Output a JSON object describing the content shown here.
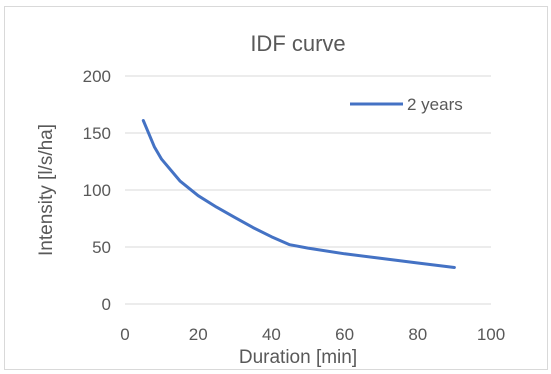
{
  "chart_data": {
    "type": "line",
    "title": "IDF curve",
    "xlabel": "Duration [min]",
    "ylabel": "Intensity [l/s/ha]",
    "xlim": [
      0,
      100
    ],
    "ylim": [
      0,
      200
    ],
    "x_ticks": [
      "0",
      "20",
      "40",
      "60",
      "80",
      "100"
    ],
    "y_ticks": [
      "0",
      "50",
      "100",
      "150",
      "200"
    ],
    "grid": "horizontal",
    "legend": "top-right",
    "series": [
      {
        "name": "2 years",
        "color": "#4472c4",
        "points": [
          [
            5,
            161
          ],
          [
            8,
            138
          ],
          [
            10,
            127
          ],
          [
            15,
            108
          ],
          [
            20,
            95
          ],
          [
            25,
            85
          ],
          [
            30,
            76
          ],
          [
            35,
            67
          ],
          [
            40,
            59
          ],
          [
            45,
            52
          ],
          [
            50,
            49
          ],
          [
            60,
            44
          ],
          [
            70,
            40
          ],
          [
            80,
            36
          ],
          [
            90,
            32
          ]
        ]
      }
    ]
  }
}
